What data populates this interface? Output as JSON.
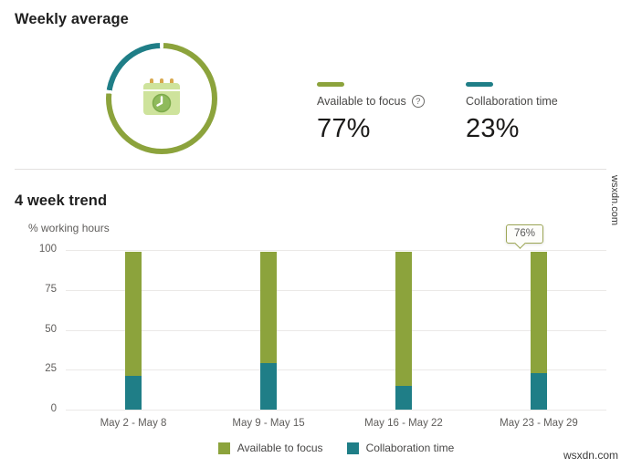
{
  "weekly_average": {
    "title": "Weekly average",
    "donut": {
      "focus_pct": 77,
      "collab_pct": 23
    },
    "stats": [
      {
        "label": "Available to focus",
        "value": "77%",
        "color": "#8CA33C",
        "has_help": true
      },
      {
        "label": "Collaboration time",
        "value": "23%",
        "color": "#1F7E87",
        "has_help": false
      }
    ],
    "help_icon_glyph": "?"
  },
  "trend": {
    "title": "4 week trend"
  },
  "chart_data": {
    "type": "bar",
    "stacked": true,
    "title": "4 week trend",
    "ylabel": "% working hours",
    "xlabel": "",
    "ylim": [
      0,
      100
    ],
    "yticks": [
      0,
      25,
      50,
      75,
      100
    ],
    "grid": true,
    "legend_position": "bottom",
    "categories": [
      "May 2 - May 8",
      "May 9 - May 15",
      "May 16 - May 22",
      "May 23 - May 29"
    ],
    "series": [
      {
        "name": "Available to focus",
        "color": "#8CA33C",
        "values": [
          78,
          70,
          84,
          76
        ]
      },
      {
        "name": "Collaboration time",
        "color": "#1F7E87",
        "values": [
          21,
          29,
          15,
          23
        ]
      }
    ],
    "tooltip": {
      "category_index": 3,
      "text": "76%"
    }
  },
  "watermark": "wsxdn.com"
}
